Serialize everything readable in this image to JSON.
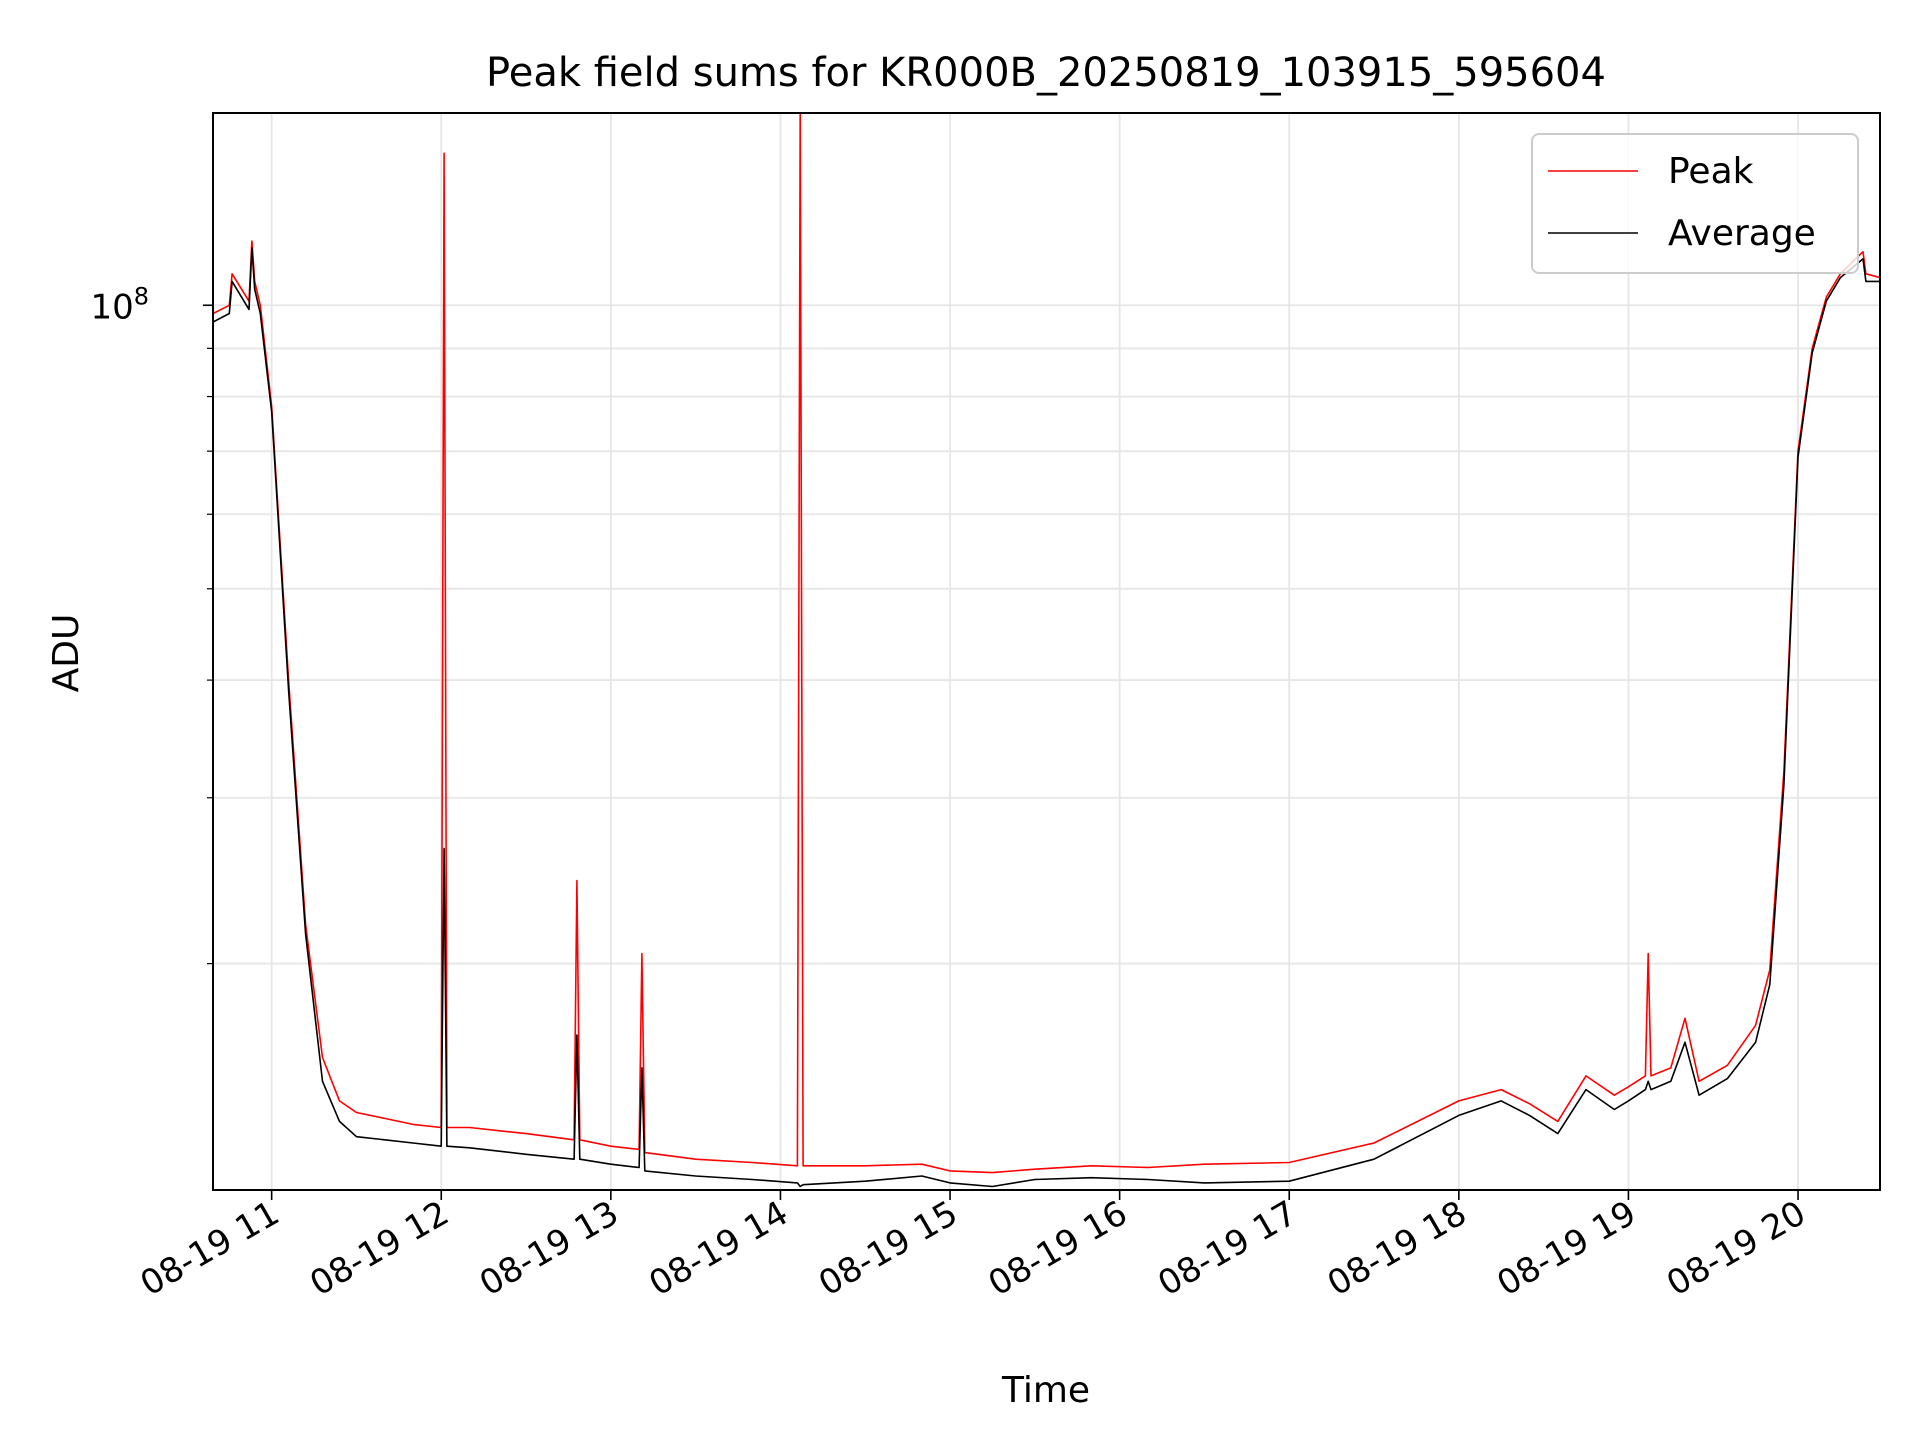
{
  "chart_data": {
    "type": "line",
    "title": "Peak field sums for KR000B_20250819_103915_595604",
    "xlabel": "Time",
    "ylabel": "ADU",
    "yscale": "log",
    "ylim": [
      11500000,
      160000000
    ],
    "xlim": [
      "2025-08-19 10:39:15",
      "2025-08-19 20:29:00"
    ],
    "x_ticks": [
      "08-19 11",
      "08-19 12",
      "08-19 13",
      "08-19 14",
      "08-19 15",
      "08-19 16",
      "08-19 17",
      "08-19 18",
      "08-19 19",
      "08-19 20"
    ],
    "y_tick_labels": [
      {
        "base": "10",
        "exp": "8"
      }
    ],
    "grid": true,
    "legend_position": "top-right",
    "series": [
      {
        "name": "Peak",
        "color": "#ff0000",
        "x": [
          "2025-08-19 10:39:15",
          "2025-08-19 10:45:00",
          "2025-08-19 10:46:00",
          "2025-08-19 10:52:00",
          "2025-08-19 10:53:00",
          "2025-08-19 10:54:00",
          "2025-08-19 10:56:00",
          "2025-08-19 11:00:00",
          "2025-08-19 11:06:00",
          "2025-08-19 11:12:00",
          "2025-08-19 11:18:00",
          "2025-08-19 11:24:00",
          "2025-08-19 11:30:00",
          "2025-08-19 11:40:00",
          "2025-08-19 11:50:00",
          "2025-08-19 12:00:00",
          "2025-08-19 12:01:00",
          "2025-08-19 12:02:00",
          "2025-08-19 12:10:00",
          "2025-08-19 12:30:00",
          "2025-08-19 12:47:00",
          "2025-08-19 12:48:00",
          "2025-08-19 12:49:00",
          "2025-08-19 13:00:00",
          "2025-08-19 13:10:00",
          "2025-08-19 13:11:00",
          "2025-08-19 13:12:00",
          "2025-08-19 13:30:00",
          "2025-08-19 13:50:00",
          "2025-08-19 14:06:00",
          "2025-08-19 14:07:00",
          "2025-08-19 14:08:00",
          "2025-08-19 14:30:00",
          "2025-08-19 14:50:00",
          "2025-08-19 15:00:00",
          "2025-08-19 15:15:00",
          "2025-08-19 15:30:00",
          "2025-08-19 15:50:00",
          "2025-08-19 16:10:00",
          "2025-08-19 16:30:00",
          "2025-08-19 17:00:00",
          "2025-08-19 17:30:00",
          "2025-08-19 18:00:00",
          "2025-08-19 18:15:00",
          "2025-08-19 18:25:00",
          "2025-08-19 18:35:00",
          "2025-08-19 18:45:00",
          "2025-08-19 18:55:00",
          "2025-08-19 19:00:00",
          "2025-08-19 19:06:00",
          "2025-08-19 19:07:00",
          "2025-08-19 19:08:00",
          "2025-08-19 19:15:00",
          "2025-08-19 19:20:00",
          "2025-08-19 19:25:00",
          "2025-08-19 19:35:00",
          "2025-08-19 19:45:00",
          "2025-08-19 19:50:00",
          "2025-08-19 19:55:00",
          "2025-08-19 20:00:00",
          "2025-08-19 20:05:00",
          "2025-08-19 20:10:00",
          "2025-08-19 20:15:00",
          "2025-08-19 20:23:00",
          "2025-08-19 20:24:00",
          "2025-08-19 20:29:00"
        ],
        "y": [
          98000000,
          100000000,
          108000000,
          101000000,
          117000000,
          106000000,
          100000000,
          78000000,
          40000000,
          22000000,
          15900000,
          14300000,
          13900000,
          13700000,
          13500000,
          13400000,
          145000000,
          13400000,
          13400000,
          13200000,
          13000000,
          24500000,
          13000000,
          12800000,
          12700000,
          20500000,
          12600000,
          12400000,
          12300000,
          12200000,
          162000000,
          12200000,
          12200000,
          12250000,
          12050000,
          12000000,
          12100000,
          12200000,
          12150000,
          12250000,
          12300000,
          12900000,
          14300000,
          14700000,
          14200000,
          13600000,
          15200000,
          14500000,
          14800000,
          15200000,
          20500000,
          15200000,
          15500000,
          17500000,
          15000000,
          15600000,
          17200000,
          19700000,
          32000000,
          70000000,
          90000000,
          102000000,
          108000000,
          114000000,
          108000000,
          107000000
        ]
      },
      {
        "name": "Average",
        "color": "#000000",
        "x": [
          "2025-08-19 10:39:15",
          "2025-08-19 10:45:00",
          "2025-08-19 10:46:00",
          "2025-08-19 10:52:00",
          "2025-08-19 10:53:00",
          "2025-08-19 10:54:00",
          "2025-08-19 10:56:00",
          "2025-08-19 11:00:00",
          "2025-08-19 11:06:00",
          "2025-08-19 11:12:00",
          "2025-08-19 11:18:00",
          "2025-08-19 11:24:00",
          "2025-08-19 11:30:00",
          "2025-08-19 11:40:00",
          "2025-08-19 11:50:00",
          "2025-08-19 12:00:00",
          "2025-08-19 12:01:00",
          "2025-08-19 12:02:00",
          "2025-08-19 12:10:00",
          "2025-08-19 12:30:00",
          "2025-08-19 12:47:00",
          "2025-08-19 12:48:00",
          "2025-08-19 12:49:00",
          "2025-08-19 13:00:00",
          "2025-08-19 13:10:00",
          "2025-08-19 13:11:00",
          "2025-08-19 13:12:00",
          "2025-08-19 13:30:00",
          "2025-08-19 13:50:00",
          "2025-08-19 14:06:00",
          "2025-08-19 14:07:00",
          "2025-08-19 14:08:00",
          "2025-08-19 14:30:00",
          "2025-08-19 14:50:00",
          "2025-08-19 15:00:00",
          "2025-08-19 15:15:00",
          "2025-08-19 15:30:00",
          "2025-08-19 15:50:00",
          "2025-08-19 16:10:00",
          "2025-08-19 16:30:00",
          "2025-08-19 17:00:00",
          "2025-08-19 17:30:00",
          "2025-08-19 18:00:00",
          "2025-08-19 18:15:00",
          "2025-08-19 18:25:00",
          "2025-08-19 18:35:00",
          "2025-08-19 18:45:00",
          "2025-08-19 18:55:00",
          "2025-08-19 19:00:00",
          "2025-08-19 19:06:00",
          "2025-08-19 19:07:00",
          "2025-08-19 19:08:00",
          "2025-08-19 19:15:00",
          "2025-08-19 19:20:00",
          "2025-08-19 19:25:00",
          "2025-08-19 19:35:00",
          "2025-08-19 19:45:00",
          "2025-08-19 19:50:00",
          "2025-08-19 19:55:00",
          "2025-08-19 20:00:00",
          "2025-08-19 20:05:00",
          "2025-08-19 20:10:00",
          "2025-08-19 20:15:00",
          "2025-08-19 20:23:00",
          "2025-08-19 20:24:00",
          "2025-08-19 20:29:00"
        ],
        "y": [
          96000000,
          98000000,
          106000000,
          99000000,
          115000000,
          104000000,
          98000000,
          77000000,
          39000000,
          21500000,
          15000000,
          13600000,
          13100000,
          13000000,
          12900000,
          12800000,
          26500000,
          12800000,
          12750000,
          12550000,
          12400000,
          16800000,
          12400000,
          12250000,
          12150000,
          15500000,
          12050000,
          11900000,
          11800000,
          11700000,
          11600000,
          11650000,
          11750000,
          11900000,
          11700000,
          11600000,
          11800000,
          11850000,
          11800000,
          11700000,
          11750000,
          12400000,
          13800000,
          14300000,
          13800000,
          13200000,
          14700000,
          14000000,
          14300000,
          14700000,
          15000000,
          14700000,
          15000000,
          16500000,
          14500000,
          15100000,
          16500000,
          19000000,
          31000000,
          69000000,
          89000000,
          101000000,
          107000000,
          112000000,
          106000000,
          106000000
        ]
      }
    ]
  }
}
